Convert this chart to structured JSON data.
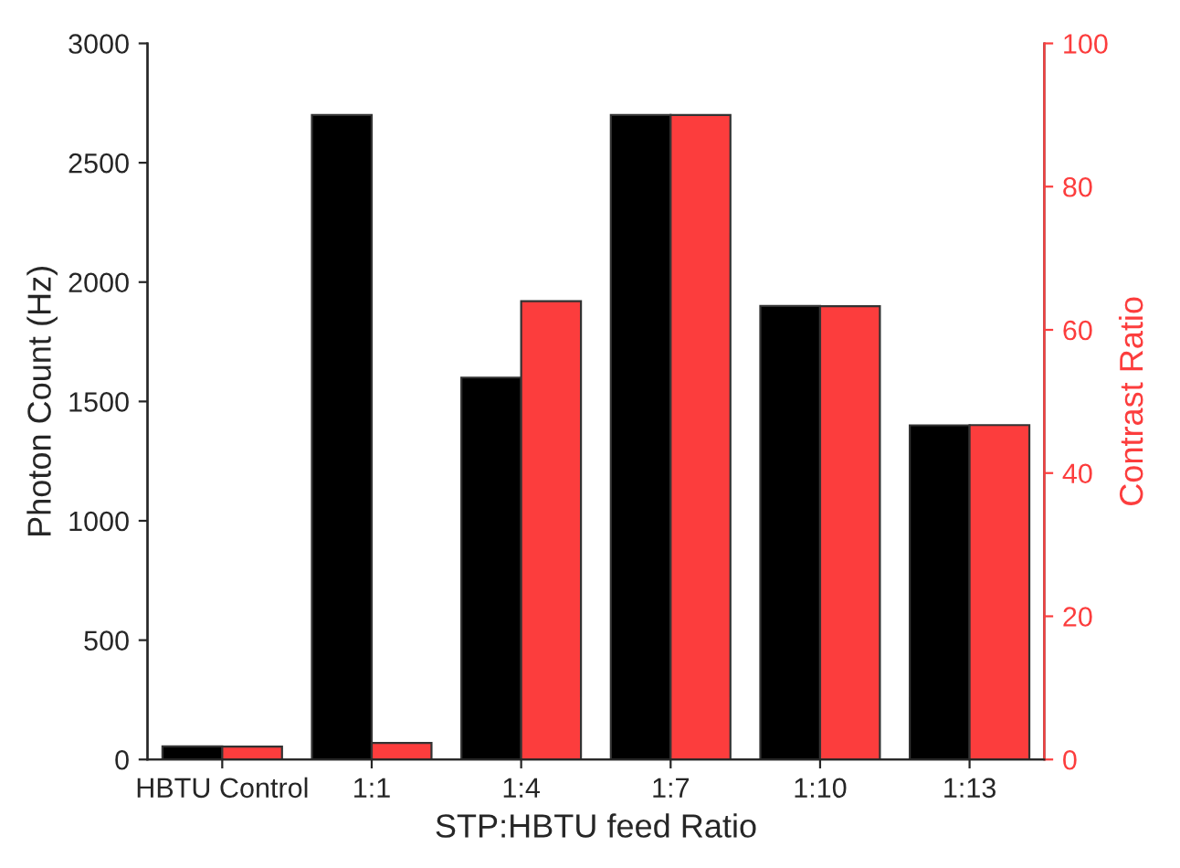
{
  "chart_data": {
    "type": "bar",
    "xlabel": "STP:HBTU feed Ratio",
    "ylabel": "Photon Count (Hz)",
    "y2label": "Contrast Ratio",
    "categories": [
      "HBTU Control",
      "1:1",
      "1:4",
      "1:7",
      "1:10",
      "1:13"
    ],
    "series": [
      {
        "color": "#000000",
        "values": [
          55,
          2700,
          1600,
          2700,
          1900,
          1400
        ]
      },
      {
        "color": "#fc3d3d",
        "axis": "y2",
        "values": [
          1.8,
          2.3,
          64,
          90,
          63.3,
          46.7
        ]
      }
    ],
    "ylim": [
      0,
      3000
    ],
    "yticks": [
      0,
      500,
      1000,
      1500,
      2000,
      2500,
      3000
    ],
    "y2lim": [
      0,
      100
    ],
    "y2ticks": [
      0,
      20,
      40,
      60,
      80,
      100
    ],
    "grid": false,
    "legend": false
  }
}
